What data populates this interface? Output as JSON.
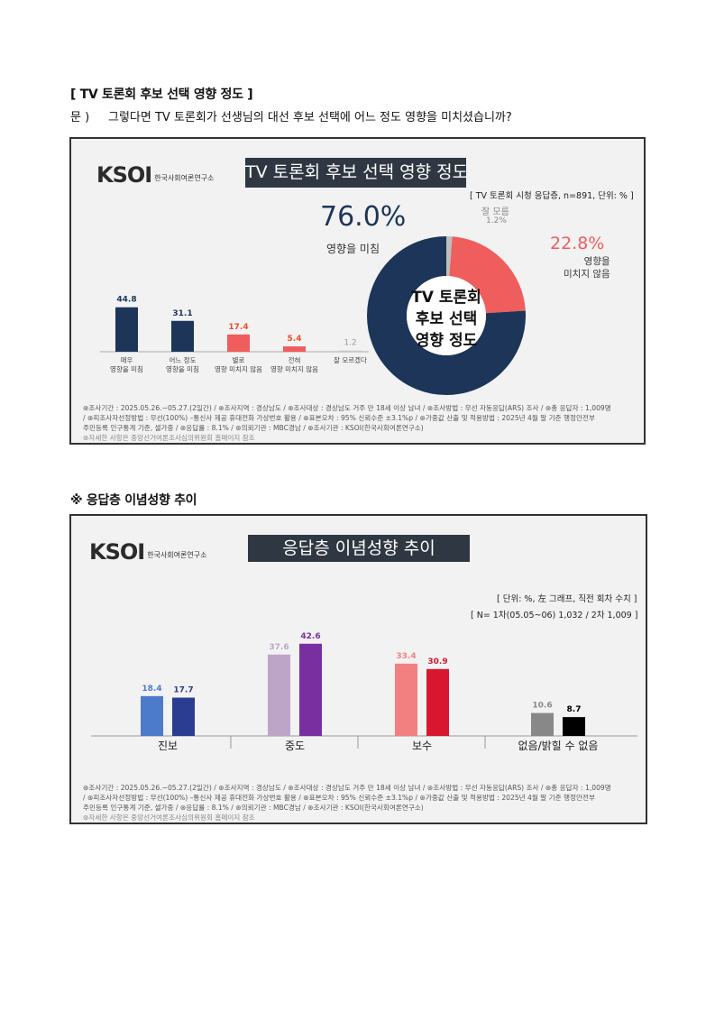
{
  "section1": {
    "title": "[ TV 토론회 후보 선택 영향 정도 ]",
    "question_prefix": "문 )",
    "question": "그렇다면 TV 토론회가 선생님의 대선 후보 선택에 어느 정도 영향을 미치셨습니까?"
  },
  "panel1": {
    "logo_text": "KSOI",
    "logo_sub": "한국사회여론연구소",
    "title": "TV 토론회 후보 선택 영향 정도",
    "note": "[ TV 토론회 시청 응답층, n=891, 단위: % ]",
    "donut_center": [
      "TV 토론회",
      "후보 선택",
      "영향 정도"
    ],
    "influenced_pct": "76.0%",
    "influenced_label": "영향을 미침",
    "not_influenced_pct": "22.8%",
    "not_influenced_label": [
      "영향을",
      "미치지 않음"
    ],
    "unknown_label": "잘 모름",
    "unknown_pct": "1.2%",
    "footer": [
      "⊛조사기간 : 2025.05.26.~05.27.(2일간)  / ⊛조사지역 : 경상남도 / ⊛조사대상 : 경상남도 거주 만 18세 이상 남녀 / ⊛조사방법 : 무선 자동응답(ARS) 조사 / ⊛총 응답자 : 1,009명",
      "/ ⊛피조사자선정방법 : 무선(100%) –통신사 제공 휴대전화 가상번호 활용 / ⊛표본오차 : 95% 신뢰수준 ±3.1%p / ⊛가중값 산출 및 적용방법 : 2025년 4월 말 기준 행정안전부",
      "주민등록 인구통계 기준, 셀가중 / ⊛응답률 : 8.1% / ⊛의뢰기관 : MBC경남 / ⊛조사기관 : KSOI(한국사회여론연구소)",
      "⊛자세한 사항은 중앙선거여론조사심의위원회 홈페이지 참조"
    ]
  },
  "section2": {
    "title": "※ 응답층 이념성향 추이"
  },
  "panel2": {
    "logo_text": "KSOI",
    "logo_sub": "한국사회여론연구소",
    "title": "응답층 이념성향 추이",
    "note1": "[ 단위: %, 左 그래프, 직전 회차 수치 ]",
    "note2": "[ N= 1차(05.05~06) 1,032 / 2차 1,009 ]",
    "footer": [
      "⊛조사기간 : 2025.05.26.~05.27.(2일간)  / ⊛조사지역 : 경상남도 / ⊛조사대상 : 경상남도 거주 만 18세 이상 남녀 / ⊛조사방법 : 무선 자동응답(ARS) 조사 / ⊛총 응답자 : 1,009명",
      "/ ⊛피조사자선정방법 : 무선(100%) –통신사 제공 휴대전화 가상번호 활용 / ⊛표본오차 : 95% 신뢰수준 ±3.1%p / ⊛가중값 산출 및 적용방법 : 2025년 4월 말 기준 행정안전부",
      "주민등록 인구통계 기준, 셀가중 / ⊛응답률 : 8.1% / ⊛의뢰기관 : MBC경남 / ⊛조사기관 : KSOI(한국사회여론연구소)",
      "⊛자세한 사항은 중앙선거여론조사심의위원회 홈페이지 참조"
    ]
  },
  "chart_data": [
    {
      "type": "bar",
      "categories": [
        "매우\n영향을 미침",
        "어느 정도\n영향을 미침",
        "별로\n영향 미치지 않음",
        "전혀\n영향 미치지 않음",
        "잘 모르겠다"
      ],
      "values": [
        44.8,
        31.1,
        17.4,
        5.4,
        1.2
      ],
      "colors": [
        "#1c3559",
        "#1c3559",
        "#f05d5d",
        "#f05d5d",
        "#c8c8c8"
      ],
      "title": "",
      "xlabel": "",
      "ylabel": ""
    },
    {
      "type": "pie",
      "labels": [
        "영향을 미침",
        "영향을 미치지 않음",
        "잘 모름"
      ],
      "values": [
        76.0,
        22.8,
        1.2
      ],
      "colors": [
        "#1c3559",
        "#f05d5d",
        "#bdbdbd"
      ],
      "donut": true
    },
    {
      "type": "bar",
      "categories": [
        "진보",
        "중도",
        "보수",
        "없음/밝힐 수 없음"
      ],
      "series": [
        {
          "values": [
            18.4,
            37.6,
            33.4,
            10.6
          ],
          "colors": [
            "#4d7bcc",
            "#bda5c8",
            "#f28080",
            "#888888"
          ]
        },
        {
          "values": [
            17.7,
            42.6,
            30.9,
            8.7
          ],
          "colors": [
            "#2b3d91",
            "#7a2fa0",
            "#d9162f",
            "#000000"
          ]
        }
      ],
      "title": "",
      "xlabel": "",
      "ylabel": ""
    }
  ]
}
